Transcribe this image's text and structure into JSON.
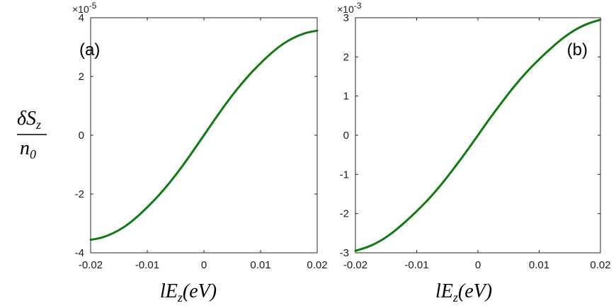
{
  "figure": {
    "ylabel": {
      "num_prefix": "δS",
      "num_sub": "z",
      "den": "n",
      "den_sub": "0"
    },
    "xlabel": {
      "main": "lE",
      "sub": "z",
      "paren": "(eV)"
    }
  },
  "chart_data": [
    {
      "type": "line",
      "panel_label": "(a)",
      "exponent": {
        "base": "×10",
        "power": "-5"
      },
      "xlim": [
        -0.02,
        0.02
      ],
      "ylim": [
        -4,
        4
      ],
      "xticks": [
        "-0.02",
        "-0.01",
        "0",
        "0.01",
        "0.02"
      ],
      "yticks": [
        "-4",
        "-2",
        "0",
        "2",
        "4"
      ],
      "color": "#127a12",
      "series": [
        {
          "x": [
            -0.02,
            -0.018,
            -0.016,
            -0.014,
            -0.012,
            -0.01,
            -0.008,
            -0.006,
            -0.004,
            -0.002,
            0,
            0.002,
            0.004,
            0.006,
            0.008,
            0.01,
            0.012,
            0.014,
            0.016,
            0.018,
            0.02
          ],
          "values": [
            -3.56,
            -3.48,
            -3.33,
            -3.11,
            -2.81,
            -2.45,
            -2.05,
            -1.6,
            -1.1,
            -0.56,
            0,
            0.56,
            1.1,
            1.6,
            2.05,
            2.45,
            2.81,
            3.11,
            3.33,
            3.48,
            3.56
          ]
        }
      ]
    },
    {
      "type": "line",
      "panel_label": "(b)",
      "exponent": {
        "base": "×10",
        "power": "-3"
      },
      "xlim": [
        -0.02,
        0.02
      ],
      "ylim": [
        -3,
        3
      ],
      "xticks": [
        "-0.02",
        "-0.01",
        "0",
        "0.01",
        "0.02"
      ],
      "yticks": [
        "-3",
        "-2",
        "-1",
        "0",
        "1",
        "2",
        "3"
      ],
      "color": "#127a12",
      "series": [
        {
          "x": [
            -0.02,
            -0.018,
            -0.016,
            -0.014,
            -0.012,
            -0.01,
            -0.008,
            -0.006,
            -0.004,
            -0.002,
            0,
            0.002,
            0.004,
            0.006,
            0.008,
            0.01,
            0.012,
            0.014,
            0.016,
            0.018,
            0.02
          ],
          "values": [
            -2.95,
            -2.85,
            -2.7,
            -2.49,
            -2.23,
            -1.94,
            -1.62,
            -1.26,
            -0.86,
            -0.44,
            0,
            0.44,
            0.86,
            1.26,
            1.62,
            1.94,
            2.23,
            2.49,
            2.7,
            2.85,
            2.95
          ]
        }
      ]
    }
  ]
}
